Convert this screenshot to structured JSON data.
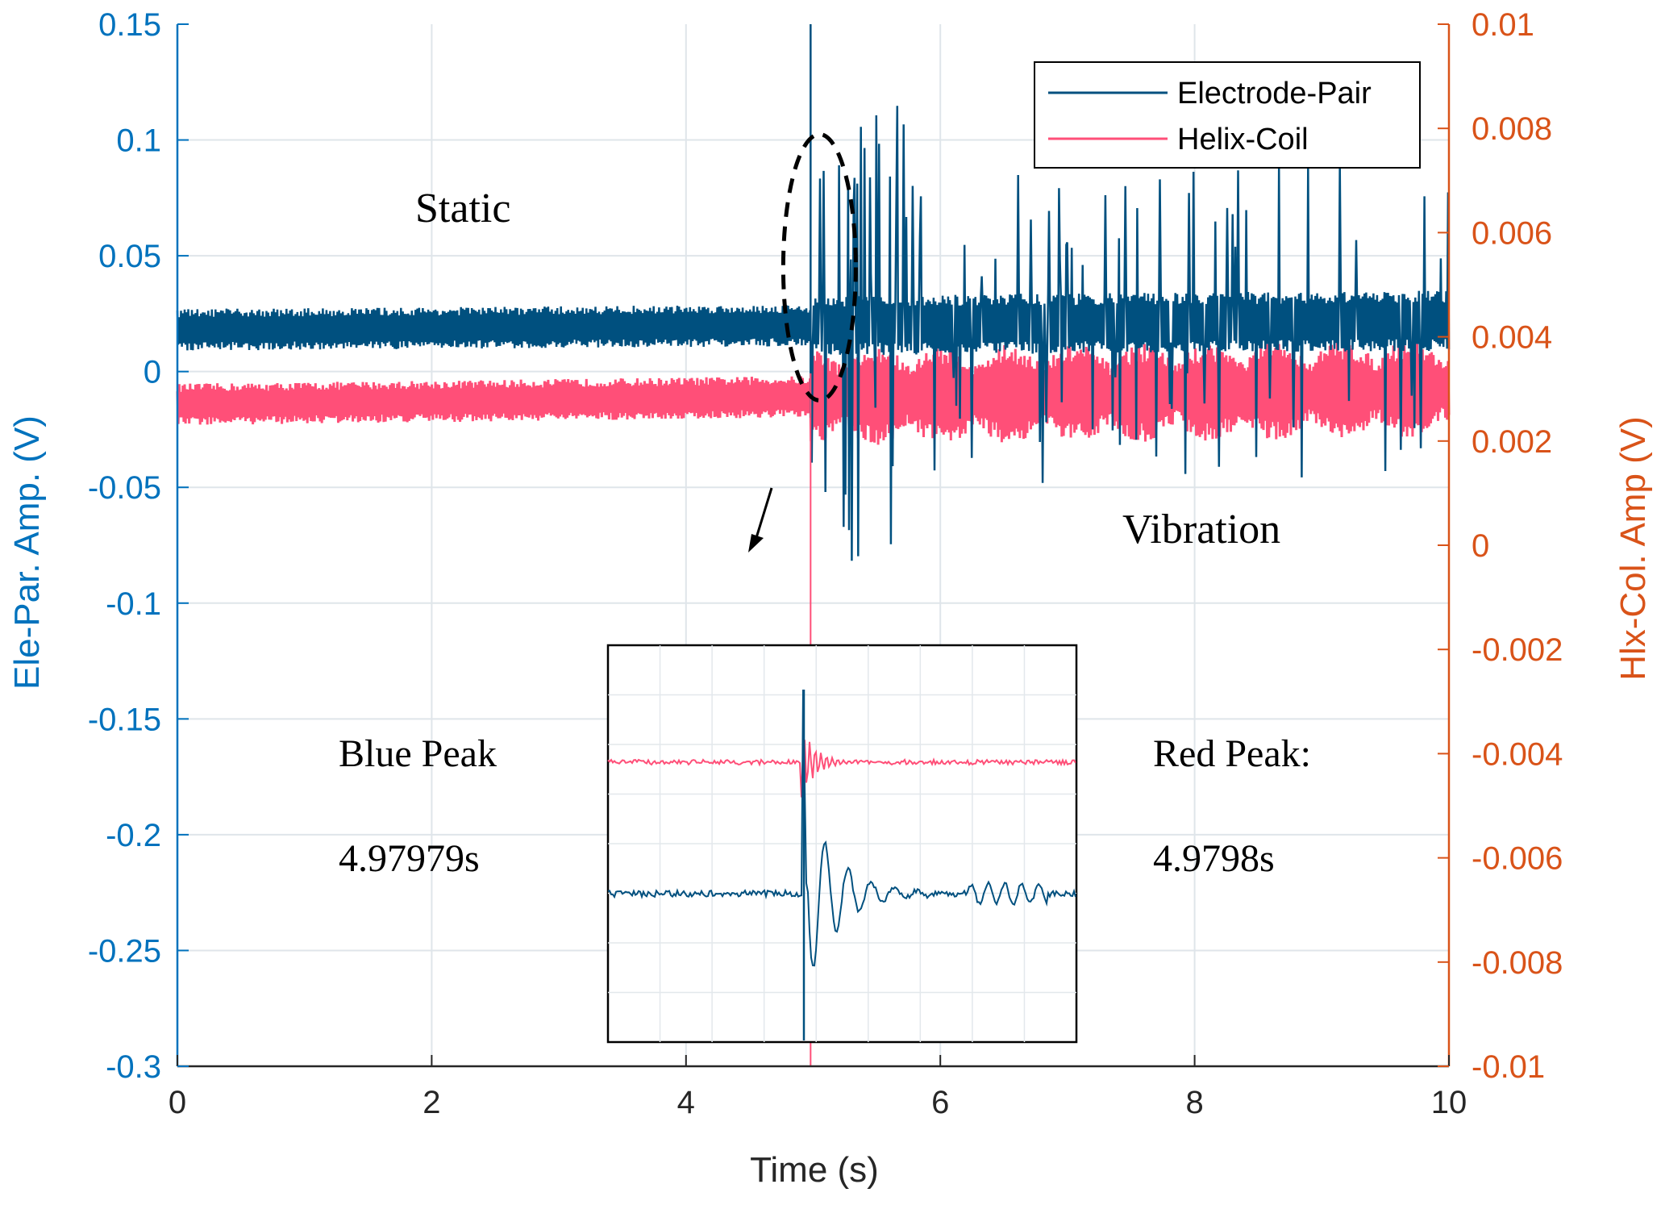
{
  "chart_data": {
    "type": "line",
    "x": {
      "label": "Time (s)",
      "range": [
        0,
        10
      ],
      "ticks": [
        0,
        2,
        4,
        6,
        8,
        10
      ],
      "tick_labels": [
        "0",
        "2",
        "4",
        "6",
        "8",
        "10"
      ]
    },
    "y_left": {
      "label": "Ele-Par. Amp. (V)",
      "range": [
        -0.3,
        0.15
      ],
      "ticks": [
        0.15,
        0.1,
        0.05,
        0,
        -0.05,
        -0.1,
        -0.15,
        -0.2,
        -0.25,
        -0.3
      ],
      "tick_labels": [
        "0.15",
        "0.1",
        "0.05",
        "0",
        "-0.05",
        "-0.1",
        "-0.15",
        "-0.2",
        "-0.25",
        "-0.3"
      ],
      "color": "#0072BD"
    },
    "y_right": {
      "label": "Hlx-Col. Amp (V)",
      "range": [
        -0.01,
        0.01
      ],
      "ticks": [
        0.01,
        0.008,
        0.006,
        0.004,
        0.002,
        0,
        -0.002,
        -0.004,
        -0.006,
        -0.008,
        -0.01
      ],
      "tick_labels": [
        "0.01",
        "0.008",
        "0.006",
        "0.004",
        "0.002",
        "0",
        "-0.002",
        "-0.004",
        "-0.006",
        "-0.008",
        "-0.01"
      ],
      "color": "#D95319"
    },
    "grid": true,
    "legend": {
      "position": "top-right",
      "entries": [
        "Electrode-Pair",
        "Helix-Coil"
      ]
    },
    "series": [
      {
        "name": "Electrode-Pair",
        "axis": "left",
        "color": "#00507F",
        "baseline_start": 0.018,
        "baseline_end": 0.022,
        "noise_amplitude_before_event": 0.009,
        "noise_amplitude_after_event": 0.013,
        "event_start_s": 4.98,
        "peak_time_s": 4.97979,
        "peak_value": 0.15,
        "post_event_max": 0.115,
        "post_event_min": -0.082
      },
      {
        "name": "Helix-Coil",
        "axis": "right",
        "color": "#FF4F78",
        "baseline_start": 0.0027,
        "baseline_end": 0.003,
        "noise_amplitude_before_event": 0.0004,
        "noise_amplitude_after_event": 0.0008,
        "event_start_s": 4.98,
        "peak_time_s": 4.9798,
        "post_event_max": 0.004,
        "post_event_min": 0.002
      }
    ],
    "annotations": {
      "static": "Static",
      "vibration": "Vibration",
      "blue_peak_label": "Blue Peak",
      "blue_peak_time": "4.97979s",
      "red_peak_label": "Red Peak:",
      "red_peak_time": "4.9798s",
      "highlight_ellipse_center": [
        5.05,
        0.045
      ],
      "inset": "zoomed view around event"
    }
  }
}
